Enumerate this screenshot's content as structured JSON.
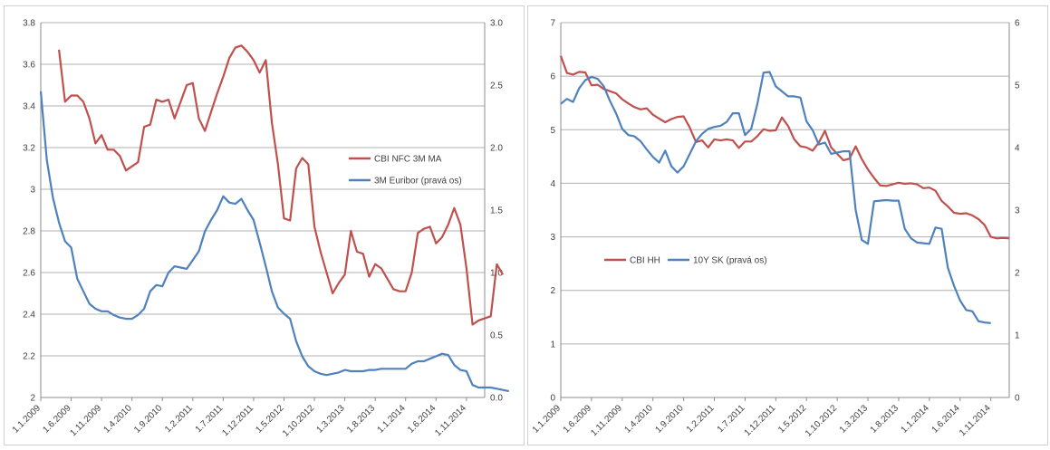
{
  "colors": {
    "series_red": "#c0504d",
    "series_blue": "#4f81bd",
    "grid": "#b0b0b0",
    "axis": "#8c8c8c",
    "text": "#404040"
  },
  "x_tick_labels": [
    "1.1.2009",
    "1.6.2009",
    "1.11.2009",
    "1.4.2010",
    "1.9.2010",
    "1.2.2011",
    "1.7.2011",
    "1.12.2011",
    "1.5.2012",
    "1.10.2012",
    "1.3.2013",
    "1.8.2013",
    "1.1.2014",
    "1.6.2014",
    "1.11.2014"
  ],
  "chart_data": [
    {
      "type": "line",
      "x_start": "1.1.2009",
      "x_interval": "month",
      "x_ticks": [
        "1.1.2009",
        "1.6.2009",
        "1.11.2009",
        "1.4.2010",
        "1.9.2010",
        "1.2.2011",
        "1.7.2011",
        "1.12.2011",
        "1.5.2012",
        "1.10.2012",
        "1.3.2013",
        "1.8.2013",
        "1.1.2014",
        "1.6.2014",
        "1.11.2014"
      ],
      "y_left": {
        "range": [
          2.0,
          3.8
        ],
        "ticks": [
          "2",
          "2.2",
          "2.4",
          "2.6",
          "2.8",
          "3",
          "3.2",
          "3.4",
          "3.6",
          "3.8"
        ]
      },
      "y_right": {
        "range": [
          0.0,
          3.0
        ],
        "ticks": [
          "0.0",
          "0.5",
          "1.0",
          "1.5",
          "2.0",
          "2.5",
          "3.0"
        ]
      },
      "grid": true,
      "legend_position": "middle-right",
      "series": [
        {
          "name": "CBI NFC 3M MA",
          "axis": "left",
          "color": "#c0504d",
          "start_index": 3,
          "values": [
            3.67,
            3.42,
            3.45,
            3.45,
            3.42,
            3.34,
            3.22,
            3.26,
            3.19,
            3.19,
            3.16,
            3.09,
            3.11,
            3.13,
            3.3,
            3.31,
            3.43,
            3.42,
            3.43,
            3.34,
            3.42,
            3.5,
            3.51,
            3.34,
            3.28,
            3.37,
            3.46,
            3.54,
            3.63,
            3.68,
            3.69,
            3.66,
            3.62,
            3.56,
            3.62,
            3.32,
            3.12,
            2.86,
            2.85,
            3.1,
            3.15,
            3.12,
            2.82,
            2.7,
            2.6,
            2.5,
            2.55,
            2.59,
            2.8,
            2.7,
            2.69,
            2.58,
            2.64,
            2.62,
            2.57,
            2.52,
            2.51,
            2.51,
            2.6,
            2.79,
            2.81,
            2.82,
            2.74,
            2.77,
            2.83,
            2.91,
            2.83,
            2.62,
            2.35,
            2.37,
            2.38,
            2.39,
            2.64,
            2.59
          ]
        },
        {
          "name": "3M Euribor (pravá os)",
          "axis": "right",
          "color": "#4f81bd",
          "start_index": 0,
          "values": [
            2.45,
            1.9,
            1.6,
            1.4,
            1.25,
            1.2,
            0.95,
            0.85,
            0.75,
            0.71,
            0.69,
            0.69,
            0.66,
            0.64,
            0.63,
            0.63,
            0.66,
            0.71,
            0.85,
            0.9,
            0.89,
            1.0,
            1.05,
            1.04,
            1.03,
            1.1,
            1.17,
            1.33,
            1.42,
            1.5,
            1.61,
            1.56,
            1.55,
            1.59,
            1.5,
            1.42,
            1.24,
            1.05,
            0.85,
            0.72,
            0.67,
            0.63,
            0.45,
            0.33,
            0.25,
            0.21,
            0.19,
            0.18,
            0.19,
            0.2,
            0.22,
            0.21,
            0.21,
            0.21,
            0.22,
            0.22,
            0.23,
            0.23,
            0.23,
            0.23,
            0.23,
            0.27,
            0.29,
            0.29,
            0.31,
            0.33,
            0.35,
            0.34,
            0.26,
            0.22,
            0.21,
            0.1,
            0.08,
            0.08,
            0.08,
            0.07,
            0.06,
            0.05
          ]
        }
      ]
    },
    {
      "type": "line",
      "x_start": "1.1.2009",
      "x_interval": "month",
      "x_ticks": [
        "1.1.2009",
        "1.6.2009",
        "1.11.2009",
        "1.4.2010",
        "1.9.2010",
        "1.2.2011",
        "1.7.2011",
        "1.12.2011",
        "1.5.2012",
        "1.10.2012",
        "1.3.2013",
        "1.8.2013",
        "1.1.2014",
        "1.6.2014",
        "1.11.2014"
      ],
      "y_left": {
        "range": [
          0,
          7
        ],
        "ticks": [
          "0",
          "1",
          "2",
          "3",
          "4",
          "5",
          "6",
          "7"
        ]
      },
      "y_right": {
        "range": [
          0,
          6
        ],
        "ticks": [
          "0",
          "1",
          "2",
          "3",
          "4",
          "5",
          "6"
        ]
      },
      "grid": true,
      "legend_position": "center-left",
      "series": [
        {
          "name": "CBI HH",
          "axis": "left",
          "color": "#c0504d",
          "start_index": 0,
          "values": [
            6.38,
            6.06,
            6.03,
            6.08,
            6.07,
            5.83,
            5.84,
            5.76,
            5.72,
            5.68,
            5.57,
            5.49,
            5.42,
            5.38,
            5.4,
            5.28,
            5.21,
            5.14,
            5.2,
            5.24,
            5.25,
            5.04,
            4.77,
            4.8,
            4.67,
            4.82,
            4.8,
            4.82,
            4.8,
            4.66,
            4.78,
            4.78,
            4.88,
            5.01,
            4.98,
            4.99,
            5.23,
            5.07,
            4.82,
            4.69,
            4.67,
            4.61,
            4.76,
            4.98,
            4.67,
            4.55,
            4.43,
            4.46,
            4.69,
            4.45,
            4.26,
            4.1,
            3.96,
            3.95,
            3.98,
            4.01,
            3.99,
            4.0,
            3.98,
            3.91,
            3.92,
            3.86,
            3.67,
            3.57,
            3.45,
            3.43,
            3.44,
            3.4,
            3.33,
            3.22,
            3.0,
            2.97,
            2.98,
            2.97
          ]
        },
        {
          "name": "10Y SK (pravá os)",
          "axis": "right",
          "color": "#4f81bd",
          "start_index": 0,
          "values": [
            4.7,
            4.78,
            4.73,
            4.95,
            5.08,
            5.13,
            5.1,
            4.98,
            4.75,
            4.55,
            4.3,
            4.2,
            4.18,
            4.1,
            3.97,
            3.85,
            3.76,
            3.95,
            3.7,
            3.6,
            3.7,
            3.9,
            4.1,
            4.22,
            4.3,
            4.33,
            4.35,
            4.41,
            4.55,
            4.55,
            4.2,
            4.3,
            4.7,
            5.2,
            5.21,
            4.98,
            4.9,
            4.82,
            4.82,
            4.8,
            4.42,
            4.28,
            4.05,
            4.08,
            3.9,
            3.92,
            3.94,
            3.94,
            3.0,
            2.52,
            2.46,
            3.14,
            3.15,
            3.16,
            3.15,
            3.15,
            2.7,
            2.55,
            2.48,
            2.47,
            2.46,
            2.72,
            2.7,
            2.08,
            1.79,
            1.55,
            1.4,
            1.38,
            1.22,
            1.2,
            1.19
          ]
        }
      ]
    }
  ]
}
